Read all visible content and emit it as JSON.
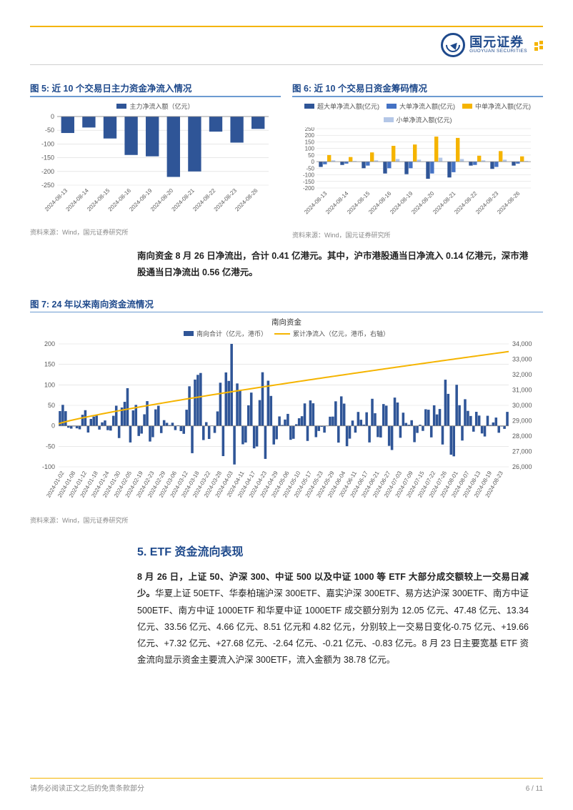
{
  "header": {
    "logo_cn": "国元证券",
    "logo_en": "GUOYUAN SECURITIES"
  },
  "colors": {
    "blue_bar": "#2f5597",
    "yellow_bar": "#f5b400",
    "light_blue_bar": "#b4c7e7",
    "axis": "#808080",
    "grid": "#d9d9d9",
    "tick_label": "#595959"
  },
  "fig5": {
    "title": "图 5: 近 10 个交易日主力资金净流入情况",
    "legend": "主力净流入额（亿元）",
    "source": "资料来源：Wind，国元证券研究所",
    "type": "bar",
    "ylim": [
      -250,
      0
    ],
    "ytick_step": 50,
    "label_fontsize": 9,
    "bar_color": "#2f5597",
    "categories": [
      "2024-08-13",
      "2024-08-14",
      "2024-08-15",
      "2024-08-16",
      "2024-08-19",
      "2024-08-20",
      "2024-08-21",
      "2024-08-22",
      "2024-08-23",
      "2024-08-26"
    ],
    "values": [
      -60,
      -40,
      -80,
      -140,
      -145,
      -220,
      -200,
      -55,
      -95,
      -45
    ]
  },
  "fig6": {
    "title": "图 6: 近 10 个交易日资金筹码情况",
    "source": "资料来源：Wind，国元证券研究所",
    "type": "grouped-bar",
    "ylim": [
      -200,
      250
    ],
    "ytick_step": 50,
    "label_fontsize": 9,
    "categories": [
      "2024-08-13",
      "2024-08-14",
      "2024-08-15",
      "2024-08-16",
      "2024-08-19",
      "2024-08-20",
      "2024-08-21",
      "2024-08-22",
      "2024-08-23",
      "2024-08-26"
    ],
    "series": [
      {
        "name": "超大单净流入额(亿元)",
        "color": "#2f5597",
        "values": [
          -40,
          -25,
          -50,
          -90,
          -95,
          -130,
          -120,
          -30,
          -55,
          -30
        ]
      },
      {
        "name": "大单净流入额(亿元)",
        "color": "#4472c4",
        "values": [
          -20,
          -15,
          -30,
          -50,
          -50,
          -90,
          -80,
          -25,
          -40,
          -15
        ]
      },
      {
        "name": "中单净流入额(亿元)",
        "color": "#f5b400",
        "values": [
          50,
          35,
          70,
          120,
          130,
          190,
          180,
          45,
          80,
          40
        ]
      },
      {
        "name": "小单净流入额(亿元)",
        "color": "#b4c7e7",
        "values": [
          10,
          5,
          10,
          20,
          15,
          30,
          20,
          10,
          15,
          5
        ]
      }
    ]
  },
  "para1": "南向资金 8 月 26 日净流出，合计 0.41 亿港元。其中，沪市港股通当日净流入 0.14 亿港元，深市港股通当日净流出 0.56 亿港元。",
  "fig7": {
    "title": "图 7: 24 年以来南向资金流情况",
    "chart_title": "南向资金",
    "source": "资料来源：Wind，国元证券研究所",
    "type": "bar+line",
    "legend_bar": "南向合计（亿元，港币）",
    "legend_line": "累计净流入（亿元，港币，右轴）",
    "bar_color": "#2f5597",
    "line_color": "#f5b400",
    "ylim_left": [
      -100,
      200
    ],
    "ytick_step_left": 50,
    "ylim_right": [
      26000,
      34000
    ],
    "ytick_step_right": 1000,
    "label_fontsize": 9,
    "x_labels": [
      "2024-01-02",
      "2024-01-08",
      "2024-01-12",
      "2024-01-18",
      "2024-01-24",
      "2024-01-30",
      "2024-02-05",
      "2024-02-19",
      "2024-02-23",
      "2024-02-29",
      "2024-03-06",
      "2024-03-12",
      "2024-03-18",
      "2024-03-22",
      "2024-03-28",
      "2024-04-03",
      "2024-04-11",
      "2024-04-17",
      "2024-04-23",
      "2024-04-29",
      "2024-05-06",
      "2024-05-10",
      "2024-05-17",
      "2024-05-23",
      "2024-05-29",
      "2024-06-04",
      "2024-06-11",
      "2024-06-17",
      "2024-06-21",
      "2024-06-27",
      "2024-07-03",
      "2024-07-09",
      "2024-07-15",
      "2024-07-22",
      "2024-07-26",
      "2024-08-01",
      "2024-08-07",
      "2024-08-13",
      "2024-08-19",
      "2024-08-23"
    ],
    "bar_values": [
      60,
      -10,
      30,
      20,
      10,
      40,
      70,
      30,
      60,
      20,
      -20,
      50,
      140,
      -30,
      90,
      160,
      60,
      80,
      120,
      40,
      -60,
      30,
      70,
      -20,
      50,
      80,
      -50,
      60,
      40,
      90,
      20,
      -40,
      50,
      30,
      130,
      60,
      20,
      40,
      -30,
      25
    ],
    "line_start": 28800,
    "line_end": 33500
  },
  "section5": {
    "heading": "5. ETF 资金流向表现",
    "body": "8 月 26 日，上证 50、沪深 300、中证 500 以及中证 1000 等 ETF 大部分成交额较上一交易日减少。华夏上证 50ETF、华泰柏瑞沪深 300ETF、嘉实沪深 300ETF、易方达沪深 300ETF、南方中证 500ETF、南方中证 1000ETF 和华夏中证 1000ETF 成交额分别为 12.05 亿元、47.48 亿元、13.34 亿元、33.56 亿元、4.66 亿元、8.51 亿元和 4.82 亿元，分别较上一交易日变化-0.75 亿元、+19.66 亿元、+7.32 亿元、+27.68 亿元、-2.64 亿元、-0.21 亿元、-0.83 亿元。8 月 23 日主要宽基 ETF 资金流向显示资金主要流入沪深 300ETF，流入金额为 38.78 亿元。"
  },
  "footer": {
    "left": "请务必阅读正文之后的免责条款部分",
    "right": "6 / 11"
  }
}
